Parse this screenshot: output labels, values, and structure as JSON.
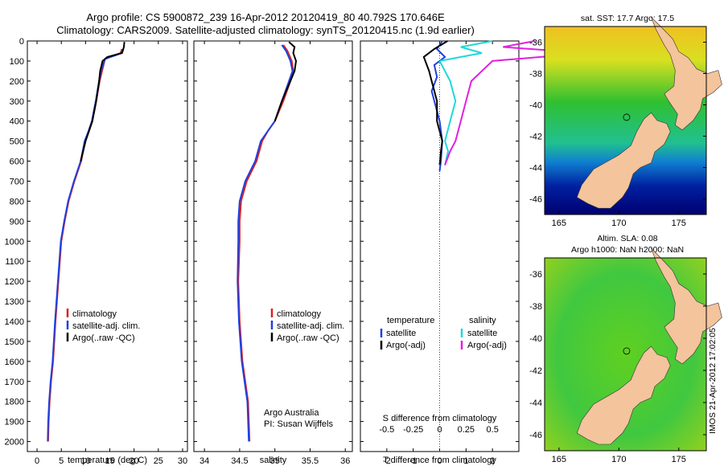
{
  "header": {
    "line1": "Argo profile: CS 5900872_239 16-Apr-2012 20120419_80 40.792S 170.646E",
    "line2": "Climatology: CARS2009. Satellite-adjusted climatology: synTS_20120415.nc (1.9d earlier)"
  },
  "maps": {
    "sst_title": "sat. SST: 17.7 Argo: 17.5",
    "sla_title1": "Altim. SLA: 0.08",
    "sla_title2": "Argo h1000: NaN h2000: NaN",
    "lon_ticks": [
      "165",
      "170",
      "175"
    ],
    "lat_ticks": [
      "-36",
      "-38",
      "-40",
      "-42",
      "-44",
      "-46"
    ],
    "land_color": "#f4c49c",
    "argo_marker": "circle"
  },
  "credit": "IMOS 21-Apr-2012 17:02:05",
  "colors": {
    "climatology": "#e02020",
    "satellite": "#2040e0",
    "argo": "#000000",
    "sal_satellite": "#20d8d8",
    "sal_argo": "#e020e0"
  },
  "chart_data": [
    {
      "type": "line",
      "xlabel": "temperature (deg C)",
      "xticks": [
        "0",
        "5",
        "10",
        "15",
        "20",
        "25",
        "30"
      ],
      "xlim": [
        -2,
        31
      ],
      "ylim": [
        2050,
        0
      ],
      "yticks": [
        "0",
        "100",
        "200",
        "300",
        "400",
        "500",
        "600",
        "700",
        "800",
        "900",
        "1000",
        "1100",
        "1200",
        "1300",
        "1400",
        "1500",
        "1600",
        "1700",
        "1800",
        "1900",
        "2000"
      ],
      "legend": [
        "climatology",
        "satellite-adj. clim.",
        "Argo(..raw -QC)"
      ],
      "legend_position": "bottom-center",
      "series": [
        {
          "name": "climatology",
          "x": [
            17.5,
            17.2,
            14.0,
            13.4,
            12.9,
            12.2,
            11.4,
            10.7,
            9.9,
            9.1,
            7.7,
            6.5,
            5.7,
            5.0,
            4.4,
            3.8,
            3.3,
            2.9,
            2.6,
            2.4,
            2.3
          ],
          "y": [
            40,
            60,
            90,
            150,
            200,
            300,
            400,
            450,
            500,
            600,
            700,
            800,
            900,
            1000,
            1200,
            1400,
            1600,
            1700,
            1800,
            1900,
            2000
          ]
        },
        {
          "name": "satellite-adj. clim.",
          "x": [
            17.8,
            17.5,
            14.0,
            13.2,
            12.8,
            12.1,
            11.3,
            10.6,
            9.8,
            9.0,
            7.6,
            6.4,
            5.6,
            4.9,
            4.3,
            3.7,
            3.2,
            2.8,
            2.5,
            2.3,
            2.2
          ],
          "y": [
            40,
            60,
            90,
            150,
            200,
            300,
            400,
            450,
            500,
            600,
            700,
            800,
            900,
            1000,
            1200,
            1400,
            1600,
            1700,
            1800,
            1900,
            2000
          ]
        },
        {
          "name": "Argo(..raw -QC)",
          "x": [
            18.0,
            17.9,
            17.5,
            14.5,
            13.5,
            13.0,
            12.8,
            12.2,
            11.4,
            10.0,
            9.0
          ],
          "y": [
            5,
            30,
            60,
            80,
            100,
            150,
            200,
            300,
            400,
            500,
            600
          ]
        }
      ]
    },
    {
      "type": "line",
      "xlabel": "salinity",
      "xticks": [
        "34",
        "34.5",
        "35",
        "35.5",
        "36"
      ],
      "xlim": [
        33.85,
        36.1
      ],
      "ylim": [
        2050,
        0
      ],
      "legend": [
        "climatology",
        "satellite-adj. clim.",
        "Argo(..raw -QC)"
      ],
      "legend_position": "bottom-center",
      "annotation": [
        "Argo Australia",
        "PI: Susan Wijffels"
      ],
      "series": [
        {
          "name": "climatology",
          "x": [
            35.12,
            35.18,
            35.24,
            35.26,
            35.22,
            35.12,
            35.0,
            34.9,
            34.82,
            34.74,
            34.6,
            34.52,
            34.5,
            34.5,
            34.48,
            34.5,
            34.54,
            34.58,
            34.62,
            34.64
          ],
          "y": [
            20,
            50,
            100,
            150,
            200,
            300,
            400,
            450,
            500,
            600,
            700,
            800,
            900,
            1000,
            1200,
            1400,
            1600,
            1700,
            1800,
            2000
          ]
        },
        {
          "name": "satellite-adj. clim.",
          "x": [
            35.1,
            35.16,
            35.22,
            35.25,
            35.2,
            35.1,
            35.0,
            34.9,
            34.8,
            34.72,
            34.58,
            34.5,
            34.48,
            34.48,
            34.47,
            34.49,
            34.53,
            34.57,
            34.61,
            34.63
          ],
          "y": [
            20,
            50,
            100,
            150,
            200,
            300,
            400,
            450,
            500,
            600,
            700,
            800,
            900,
            1000,
            1200,
            1400,
            1600,
            1700,
            1800,
            2000
          ]
        },
        {
          "name": "Argo(..raw -QC)",
          "x": [
            35.2,
            35.28,
            35.26,
            35.3,
            35.28,
            35.22,
            35.1,
            35.0
          ],
          "y": [
            5,
            30,
            60,
            100,
            150,
            200,
            300,
            400
          ]
        }
      ]
    },
    {
      "type": "line",
      "xlabel": "T difference from climatology",
      "xlabel2": "S difference from climatology",
      "xticks": [
        "-2",
        "-1",
        "0",
        "1",
        "2"
      ],
      "xticks2": [
        "-0.5",
        "-0.25",
        "0",
        "0.25",
        "0.5"
      ],
      "xlim": [
        -3,
        3
      ],
      "ylim": [
        2050,
        0
      ],
      "legend": [
        "temperature",
        "satellite",
        "Argo(-adj)",
        "salinity",
        "satellite",
        "Argo(-adj)"
      ],
      "legend_position": "bottom",
      "series": [
        {
          "name": "satellite",
          "x": [
            0.1,
            -0.1,
            0.2,
            -0.2,
            -0.1,
            -0.3,
            -0.1,
            0.0,
            0.1,
            0.05,
            0.0
          ],
          "y": [
            0,
            40,
            80,
            120,
            180,
            250,
            350,
            400,
            500,
            600,
            650
          ]
        },
        {
          "name": "Argo(-adj)",
          "x": [
            0.3,
            -0.2,
            -0.6,
            -0.4,
            -0.3,
            -0.1,
            -0.1,
            0.0,
            0.1,
            0.05,
            0.0
          ],
          "y": [
            0,
            40,
            80,
            150,
            200,
            300,
            400,
            450,
            500,
            550,
            620
          ]
        },
        {
          "name": "satellite",
          "x": [
            0.5,
            0.2,
            0.4,
            0.0,
            0.1,
            0.15,
            0.1,
            0.05,
            0.08,
            0.05
          ],
          "y": [
            0,
            30,
            60,
            100,
            200,
            300,
            400,
            500,
            550,
            620
          ]
        },
        {
          "name": "Argo(-adj)",
          "x": [
            0.9,
            0.6,
            1.4,
            0.5,
            0.3,
            0.25,
            0.2,
            0.15,
            0.1,
            0.05
          ],
          "y": [
            0,
            30,
            60,
            100,
            200,
            300,
            400,
            500,
            550,
            620
          ]
        }
      ]
    }
  ]
}
